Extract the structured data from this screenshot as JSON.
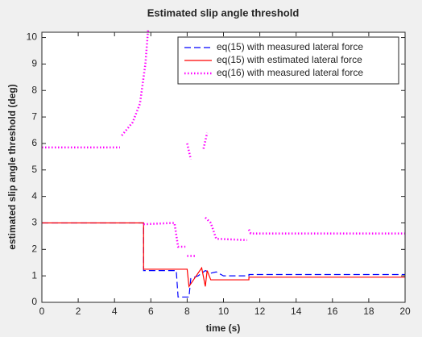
{
  "chart_data": {
    "type": "line",
    "title": "Estimated slip angle threshold",
    "x_label": "time (s)",
    "y_label": "estimated slip angle threshold (deg)",
    "xlim": [
      0,
      20
    ],
    "xticks": [
      0,
      2,
      4,
      6,
      8,
      10,
      12,
      14,
      16,
      18,
      20
    ],
    "ylim": [
      0,
      10.2
    ],
    "yticks": [
      0,
      1,
      2,
      3,
      4,
      5,
      6,
      7,
      8,
      9,
      10
    ],
    "grid": false,
    "legend": "upper-right",
    "series": [
      {
        "name": "eq(15) with measured lateral force",
        "color": "#0000ff",
        "style": "dashed",
        "x": [
          0,
          5.6,
          5.6,
          7.4,
          7.5,
          8.1,
          8.2,
          8.6,
          9.0,
          9.3,
          9.6,
          10.0,
          11.4,
          11.4,
          20
        ],
        "values": [
          3,
          3,
          1.2,
          1.2,
          0.2,
          0.2,
          0.9,
          1.0,
          1.2,
          1.1,
          1.15,
          1.0,
          1.0,
          1.05,
          1.05
        ]
      },
      {
        "name": "eq(15) with estimated lateral force",
        "color": "#ff0000",
        "style": "solid",
        "x": [
          0,
          5.6,
          5.6,
          8.0,
          8.1,
          8.4,
          8.8,
          9.0,
          9.1,
          9.3,
          11.4,
          11.4,
          20
        ],
        "values": [
          3,
          3,
          1.25,
          1.25,
          0.6,
          0.9,
          1.3,
          0.6,
          1.2,
          0.85,
          0.85,
          0.95,
          0.95
        ]
      },
      {
        "name": "eq(16) with measured lateral force",
        "color": "#ff00ff",
        "style": "dotted",
        "x": [
          0,
          4.3,
          4.35,
          4.4,
          5.0,
          5.4,
          5.7,
          5.85,
          5.9,
          5.6,
          7.3,
          7.5,
          7.9,
          7.95,
          8.0,
          8.5,
          8.55,
          8.0,
          8.2,
          8.5,
          8.9,
          9.1,
          9.1,
          9.0,
          9.3,
          9.6,
          11.3,
          11.35,
          11.4,
          11.5,
          20
        ],
        "values": [
          5.85,
          5.85,
          null,
          6.3,
          6.8,
          7.5,
          9,
          10.3,
          null,
          2.95,
          3.0,
          2.1,
          2.1,
          null,
          1.75,
          1.75,
          null,
          6.0,
          5.4,
          null,
          5.8,
          6.4,
          null,
          3.2,
          3.0,
          2.4,
          2.35,
          null,
          2.75,
          2.6,
          2.6
        ]
      }
    ]
  }
}
